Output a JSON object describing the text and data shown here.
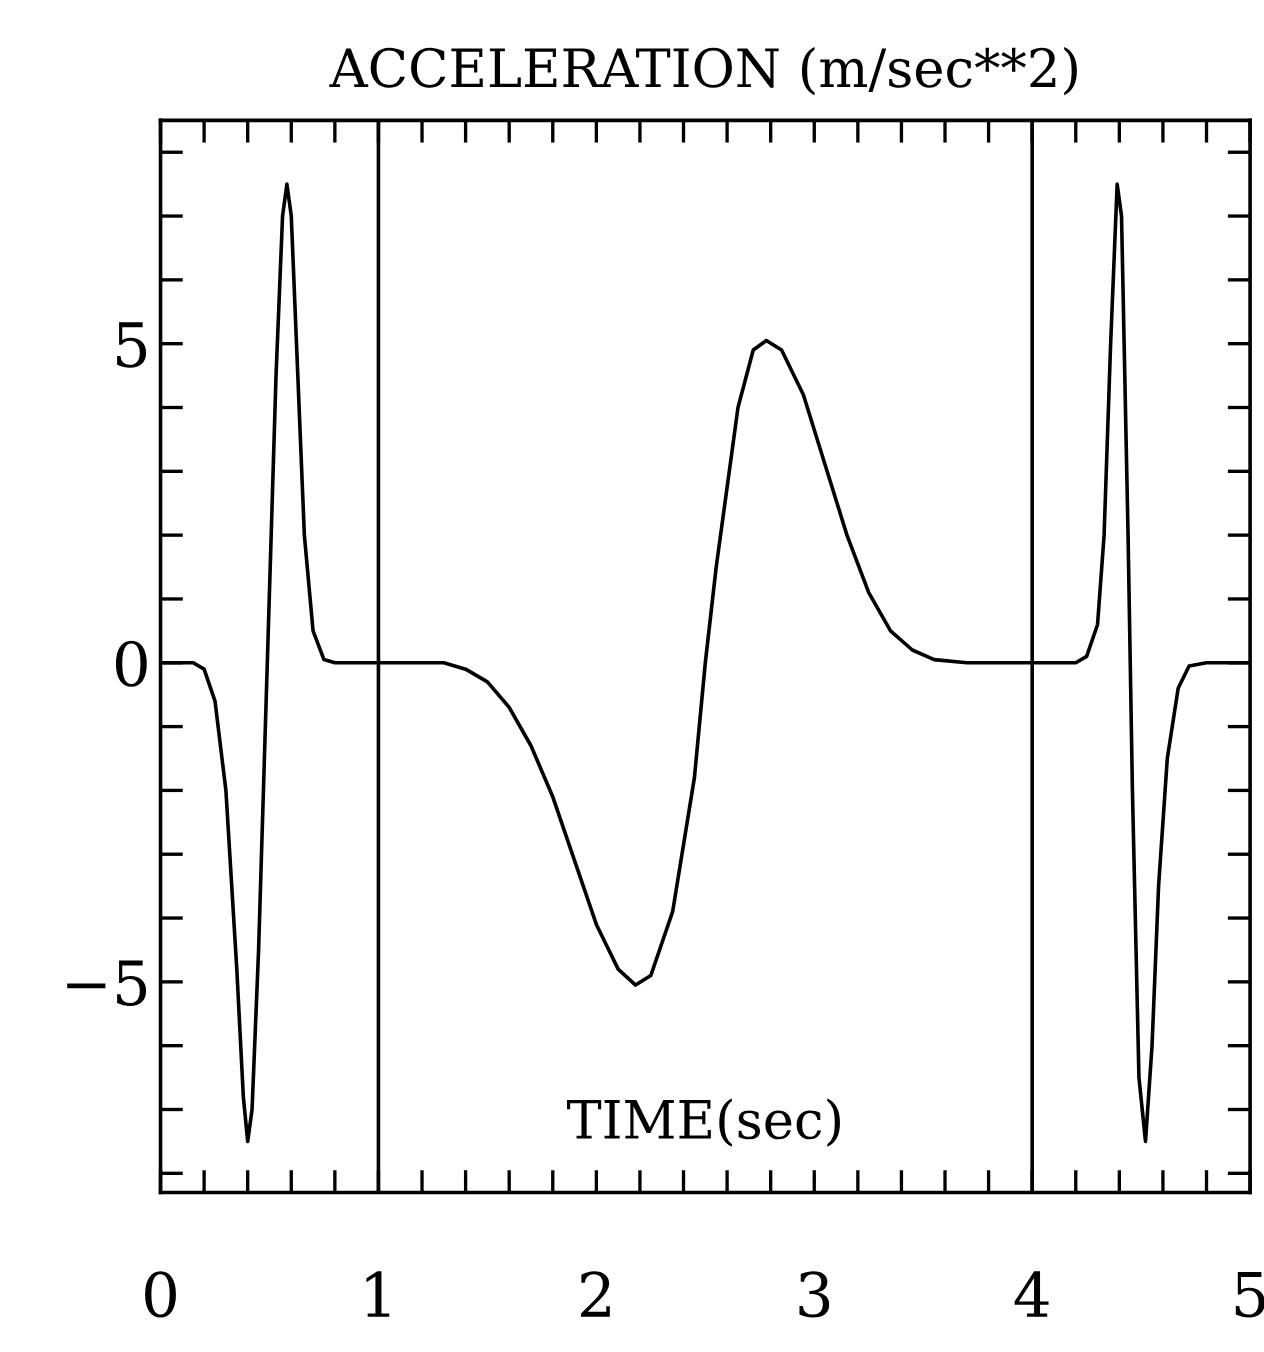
{
  "chart_data": {
    "type": "line",
    "title": "ACCELERATION (m/sec**2)",
    "xlabel": "TIME(sec)",
    "x": [
      0,
      0.15,
      0.2,
      0.25,
      0.3,
      0.35,
      0.38,
      0.4,
      0.42,
      0.45,
      0.49,
      0.53,
      0.56,
      0.58,
      0.6,
      0.63,
      0.66,
      0.7,
      0.75,
      0.8,
      1.0,
      1.3,
      1.4,
      1.5,
      1.6,
      1.7,
      1.8,
      1.9,
      2.0,
      2.1,
      2.18,
      2.25,
      2.35,
      2.45,
      2.5,
      2.55,
      2.65,
      2.72,
      2.78,
      2.85,
      2.95,
      3.05,
      3.15,
      3.25,
      3.35,
      3.45,
      3.55,
      3.7,
      4.2,
      4.25,
      4.3,
      4.33,
      4.36,
      4.39,
      4.41,
      4.44,
      4.46,
      4.49,
      4.52,
      4.55,
      4.58,
      4.62,
      4.67,
      4.72,
      4.8,
      5.0
    ],
    "series": [
      {
        "color": "#000000",
        "values": [
          0,
          0,
          -0.1,
          -0.6,
          -2.0,
          -4.8,
          -6.8,
          -7.5,
          -7.0,
          -4.5,
          0,
          4.5,
          7.0,
          7.5,
          7.0,
          4.5,
          2.0,
          0.5,
          0.05,
          0,
          0,
          0,
          -0.1,
          -0.3,
          -0.7,
          -1.3,
          -2.1,
          -3.1,
          -4.1,
          -4.8,
          -5.05,
          -4.9,
          -3.9,
          -1.8,
          0,
          1.5,
          4.0,
          4.9,
          5.05,
          4.9,
          4.2,
          3.1,
          2.0,
          1.1,
          0.5,
          0.2,
          0.05,
          0,
          0,
          0.1,
          0.6,
          2.0,
          5.0,
          7.5,
          7.0,
          2.0,
          -2.0,
          -6.5,
          -7.5,
          -6.0,
          -3.5,
          -1.5,
          -0.4,
          -0.05,
          0,
          0
        ]
      }
    ],
    "xlim": [
      0,
      5
    ],
    "ylim": [
      -8.3,
      8.5
    ],
    "xticks": [
      0,
      {
        "value": 0.2,
        "label": null
      },
      {
        "value": 0.4,
        "label": null
      },
      {
        "value": 0.6,
        "label": null
      },
      {
        "value": 0.8,
        "label": null
      },
      1,
      {
        "value": 1.2,
        "label": null
      },
      {
        "value": 1.4,
        "label": null
      },
      {
        "value": 1.6,
        "label": null
      },
      {
        "value": 1.8,
        "label": null
      },
      2,
      {
        "value": 2.2,
        "label": null
      },
      {
        "value": 2.4,
        "label": null
      },
      {
        "value": 2.6,
        "label": null
      },
      {
        "value": 2.8,
        "label": null
      },
      3,
      {
        "value": 3.2,
        "label": null
      },
      {
        "value": 3.4,
        "label": null
      },
      {
        "value": 3.6,
        "label": null
      },
      {
        "value": 3.8,
        "label": null
      },
      4,
      {
        "value": 4.2,
        "label": null
      },
      {
        "value": 4.4,
        "label": null
      },
      {
        "value": 4.6,
        "label": null
      },
      {
        "value": 4.8,
        "label": null
      },
      5
    ],
    "yticks": [
      {
        "value": -8,
        "label": null
      },
      {
        "value": -7,
        "label": null
      },
      {
        "value": -6,
        "label": null
      },
      {
        "value": -5,
        "label": "−5"
      },
      {
        "value": -4,
        "label": null
      },
      {
        "value": -3,
        "label": null
      },
      {
        "value": -2,
        "label": null
      },
      {
        "value": -1,
        "label": null
      },
      0,
      {
        "value": 1,
        "label": null
      },
      {
        "value": 2,
        "label": null
      },
      {
        "value": 3,
        "label": null
      },
      {
        "value": 4,
        "label": null
      },
      5,
      {
        "value": 6,
        "label": null
      },
      {
        "value": 7,
        "label": null
      },
      {
        "value": 8,
        "label": null
      }
    ],
    "ref_lines": [
      {
        "axis": "x",
        "value": 1,
        "label": null
      },
      {
        "axis": "x",
        "value": 4,
        "label": null
      }
    ],
    "line_style": "solid",
    "marker": "none",
    "grid": false,
    "legend": false
  }
}
